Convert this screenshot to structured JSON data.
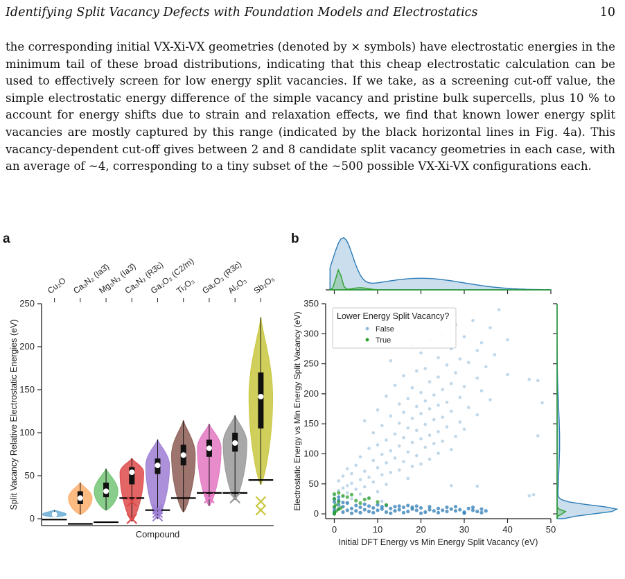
{
  "header": {
    "title": "Identifying Split Vacancy Defects with Foundation Models and Electrostatics",
    "page_number": "10"
  },
  "paragraph": "the corresponding initial VX-Xi-VX geometries (denoted by × symbols) have electrostatic energies in the minimum tail of these broad distributions, indicating that this cheap electrostatic calculation can be used to effectively screen for low energy split vacancies. If we take, as a screening cut-off value, the simple electrostatic energy difference of the simple vacancy and pristine bulk supercells, plus 10 % to account for energy shifts due to strain and relaxation effects, we find that known lower energy split vacancies are mostly captured by this range (indicated by the black horizontal lines in Fig. 4a). This vacancy-dependent cut-off gives between 2 and 8 candidate split vacancy geometries in each case, with an average of ∼4, corresponding to a tiny subset of the ∼500 possible VX-Xi-VX configurations each.",
  "figure": {
    "panel_a_label": "a",
    "panel_b_label": "b",
    "colors": {
      "false_points": "#2c7bb6",
      "true_points": "#2ca02c"
    }
  },
  "chart_data": [
    {
      "type": "violin",
      "title": "",
      "xlabel": "Compound",
      "ylabel": "Split Vacancy Relative Electrostatic Energies (eV)",
      "ylim": [
        -8,
        250
      ],
      "yticks": [
        0,
        50,
        100,
        150,
        200,
        250
      ],
      "grid": false,
      "categories": [
        "Cu₂O",
        "Ca₃N₂ (Ia3̄)",
        "Mg₃N₂ (Ia3̄)",
        "Ca₃N₂ (R3̄c)",
        "Ga₂O₃ (C2/m)",
        "Ti₂O₃",
        "Ga₂O₃ (R3̄c)",
        "Al₂O₃",
        "Sb₂O₅"
      ],
      "colors": [
        "#6baed6",
        "#fdae6b",
        "#74c476",
        "#de4a4a",
        "#9e7ed4",
        "#8c5d55",
        "#e377c2",
        "#999999",
        "#c9c73f"
      ],
      "ranges": [
        [
          2,
          10
        ],
        [
          5,
          42
        ],
        [
          10,
          58
        ],
        [
          -3,
          70
        ],
        [
          0,
          92
        ],
        [
          8,
          114
        ],
        [
          15,
          110
        ],
        [
          22,
          120
        ],
        [
          40,
          234
        ]
      ],
      "medians": [
        5,
        24,
        32,
        54,
        62,
        74,
        82,
        88,
        142
      ],
      "q1": [
        4,
        17,
        25,
        40,
        52,
        62,
        72,
        78,
        105
      ],
      "q3": [
        6,
        32,
        42,
        60,
        70,
        86,
        92,
        100,
        170
      ],
      "cutoff_lines": [
        -1,
        -6,
        -4,
        24,
        10,
        24,
        30,
        30,
        45
      ],
      "split_vacancy_markers": [
        [],
        [],
        [],
        [
          20,
          0
        ],
        [
          3,
          7,
          11
        ],
        [],
        [
          24
        ],
        [
          24
        ],
        [
          10,
          20
        ]
      ]
    },
    {
      "type": "scatter",
      "title": "",
      "xlabel": "Initial DFT Energy vs Min Energy Split Vacancy (eV)",
      "ylabel": "Electrostatic Energy vs Min Energy Split Vacancy (eV)",
      "xlim": [
        -2,
        50
      ],
      "ylim": [
        -8,
        350
      ],
      "xticks": [
        0,
        10,
        20,
        30,
        40,
        50
      ],
      "yticks": [
        0,
        50,
        100,
        150,
        200,
        250,
        300,
        350
      ],
      "grid": false,
      "legend": {
        "title": "Lower Energy Split Vacancy?",
        "placement": "top-left",
        "entries": [
          "False",
          "True"
        ]
      },
      "series": [
        {
          "name": "False",
          "color": "#2c7bb6",
          "points": [
            [
              38,
              340
            ],
            [
              32,
              322
            ],
            [
              28,
              315
            ],
            [
              36,
              310
            ],
            [
              25,
              300
            ],
            [
              30,
              295
            ],
            [
              22,
              290
            ],
            [
              40,
              290
            ],
            [
              34,
              285
            ],
            [
              18,
              280
            ],
            [
              27,
              275
            ],
            [
              33,
              272
            ],
            [
              20,
              268
            ],
            [
              37,
              265
            ],
            [
              24,
              260
            ],
            [
              29,
              258
            ],
            [
              13,
              255
            ],
            [
              31,
              252
            ],
            [
              26,
              248
            ],
            [
              35,
              245
            ],
            [
              21,
              242
            ],
            [
              19,
              238
            ],
            [
              28,
              235
            ],
            [
              40,
              232
            ],
            [
              16,
              230
            ],
            [
              24,
              228
            ],
            [
              33,
              226
            ],
            [
              45,
              224
            ],
            [
              47,
              222
            ],
            [
              22,
              220
            ],
            [
              27,
              217
            ],
            [
              14,
              214
            ],
            [
              30,
              212
            ],
            [
              18,
              210
            ],
            [
              25,
              207
            ],
            [
              34,
              205
            ],
            [
              20,
              202
            ],
            [
              23,
              198
            ],
            [
              12,
              196
            ],
            [
              29,
              194
            ],
            [
              17,
              192
            ],
            [
              36,
              190
            ],
            [
              21,
              188
            ],
            [
              26,
              186
            ],
            [
              48,
              185
            ],
            [
              15,
              183
            ],
            [
              24,
              181
            ],
            [
              19,
              179
            ],
            [
              31,
              177
            ],
            [
              22,
              175
            ],
            [
              10,
              173
            ],
            [
              27,
              171
            ],
            [
              16,
              169
            ],
            [
              20,
              167
            ],
            [
              33,
              165
            ],
            [
              13,
              163
            ],
            [
              25,
              161
            ],
            [
              18,
              159
            ],
            [
              23,
              157
            ],
            [
              7,
              155
            ],
            [
              29,
              153
            ],
            [
              15,
              151
            ],
            [
              21,
              149
            ],
            [
              11,
              147
            ],
            [
              26,
              145
            ],
            [
              17,
              143
            ],
            [
              30,
              141
            ],
            [
              19,
              139
            ],
            [
              24,
              137
            ],
            [
              9,
              135
            ],
            [
              14,
              133
            ],
            [
              22,
              131
            ],
            [
              28,
              129
            ],
            [
              47,
              130
            ],
            [
              16,
              127
            ],
            [
              20,
              125
            ],
            [
              12,
              123
            ],
            [
              25,
              121
            ],
            [
              18,
              119
            ],
            [
              23,
              117
            ],
            [
              10,
              115
            ],
            [
              15,
              113
            ],
            [
              21,
              111
            ],
            [
              8,
              109
            ],
            [
              27,
              107
            ],
            [
              13,
              105
            ],
            [
              17,
              103
            ],
            [
              24,
              101
            ],
            [
              11,
              99
            ],
            [
              19,
              97
            ],
            [
              6,
              95
            ],
            [
              14,
              93
            ],
            [
              22,
              91
            ],
            [
              9,
              89
            ],
            [
              16,
              87
            ],
            [
              12,
              85
            ],
            [
              20,
              83
            ],
            [
              5,
              81
            ],
            [
              18,
              79
            ],
            [
              10,
              77
            ],
            [
              3,
              75
            ],
            [
              15,
              73
            ],
            [
              7,
              71
            ],
            [
              13,
              69
            ],
            [
              4,
              67
            ],
            [
              11,
              65
            ],
            [
              2,
              63
            ],
            [
              8,
              61
            ],
            [
              17,
              59
            ],
            [
              6,
              57
            ],
            [
              1,
              55
            ],
            [
              9,
              53
            ],
            [
              4,
              51
            ],
            [
              12,
              49
            ],
            [
              3,
              47
            ],
            [
              27,
              47
            ],
            [
              33,
              46
            ],
            [
              7,
              45
            ],
            [
              2,
              43
            ],
            [
              5,
              41
            ],
            [
              1,
              39
            ],
            [
              10,
              37
            ],
            [
              3,
              35
            ],
            [
              6,
              33
            ],
            [
              0,
              31
            ],
            [
              45,
              30
            ],
            [
              46,
              32
            ],
            [
              2,
              29
            ],
            [
              8,
              27
            ],
            [
              4,
              25
            ],
            [
              1,
              23
            ],
            [
              11,
              21
            ],
            [
              3,
              19
            ]
          ],
          "dense_cluster": [
            [
              0,
              10
            ],
            [
              1,
              8
            ],
            [
              2,
              12
            ],
            [
              3,
              6
            ],
            [
              4,
              9
            ],
            [
              5,
              5
            ],
            [
              6,
              11
            ],
            [
              7,
              7
            ],
            [
              8,
              4
            ],
            [
              9,
              10
            ],
            [
              10,
              6
            ],
            [
              11,
              8
            ],
            [
              12,
              3
            ],
            [
              13,
              9
            ],
            [
              14,
              5
            ],
            [
              15,
              7
            ],
            [
              16,
              11
            ],
            [
              17,
              4
            ],
            [
              18,
              8
            ],
            [
              19,
              6
            ],
            [
              20,
              10
            ],
            [
              21,
              3
            ],
            [
              22,
              7
            ],
            [
              23,
              5
            ],
            [
              24,
              9
            ],
            [
              25,
              6
            ],
            [
              26,
              4
            ],
            [
              27,
              8
            ],
            [
              28,
              5
            ],
            [
              29,
              7
            ],
            [
              30,
              3
            ],
            [
              31,
              9
            ],
            [
              32,
              6
            ],
            [
              33,
              4
            ],
            [
              34,
              8
            ],
            [
              35,
              5
            ],
            [
              0,
              2
            ],
            [
              1,
              15
            ],
            [
              2,
              3
            ],
            [
              3,
              18
            ],
            [
              4,
              1
            ],
            [
              5,
              14
            ],
            [
              6,
              2
            ],
            [
              7,
              16
            ],
            [
              8,
              13
            ],
            [
              9,
              2
            ],
            [
              10,
              15
            ],
            [
              11,
              12
            ],
            [
              12,
              14
            ],
            [
              13,
              1
            ],
            [
              14,
              12
            ],
            [
              15,
              13
            ],
            [
              16,
              2
            ],
            [
              17,
              14
            ],
            [
              18,
              11
            ],
            [
              19,
              13
            ],
            [
              20,
              1
            ],
            [
              22,
              12
            ],
            [
              24,
              2
            ],
            [
              26,
              11
            ],
            [
              28,
              12
            ],
            [
              30,
              1
            ],
            [
              32,
              11
            ],
            [
              34,
              2
            ],
            [
              0,
              20
            ],
            [
              1,
              22
            ],
            [
              2,
              19
            ],
            [
              0,
              25
            ],
            [
              1,
              28
            ],
            [
              0,
              5
            ],
            [
              0,
              0
            ]
          ]
        },
        {
          "name": "True",
          "color": "#2ca02c",
          "points": [
            [
              0,
              0
            ],
            [
              0,
              2
            ],
            [
              0.5,
              5
            ],
            [
              1,
              8
            ],
            [
              0,
              12
            ],
            [
              0.3,
              15
            ],
            [
              1,
              20
            ],
            [
              0,
              25
            ],
            [
              2,
              30
            ],
            [
              3,
              28
            ],
            [
              4,
              32
            ],
            [
              5,
              22
            ],
            [
              6,
              18
            ],
            [
              7,
              24
            ],
            [
              8,
              26
            ],
            [
              10,
              20
            ],
            [
              12,
              15
            ],
            [
              0,
              33
            ],
            [
              1,
              35
            ],
            [
              1.5,
              10
            ]
          ]
        }
      ]
    }
  ]
}
